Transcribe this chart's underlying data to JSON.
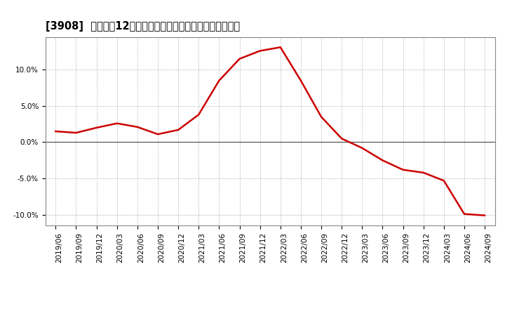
{
  "title": "[3908]  売上高の12か月移動合計の対前年同期増減率の推移",
  "line_color": "#cc0000",
  "bg_color": "#ffffff",
  "plot_bg_color": "#ffffff",
  "grid_color": "#999999",
  "zero_line_color": "#555555",
  "dates": [
    "2019/06",
    "2019/09",
    "2019/12",
    "2020/03",
    "2020/06",
    "2020/09",
    "2020/12",
    "2021/03",
    "2021/06",
    "2021/09",
    "2021/12",
    "2022/03",
    "2022/06",
    "2022/09",
    "2022/12",
    "2023/03",
    "2023/06",
    "2023/09",
    "2023/12",
    "2024/03",
    "2024/06",
    "2024/09"
  ],
  "values": [
    1.5,
    1.3,
    2.0,
    2.6,
    2.1,
    1.1,
    1.7,
    3.8,
    8.5,
    11.5,
    12.6,
    13.1,
    8.5,
    3.5,
    0.5,
    -0.8,
    -2.5,
    -3.8,
    -4.2,
    -5.3,
    -9.9,
    -10.1
  ],
  "ylim": [
    -11.5,
    14.5
  ],
  "yticks": [
    -10.0,
    -5.0,
    0.0,
    5.0,
    10.0
  ],
  "yticklabels": [
    "-10.0%",
    "-5.0%",
    "0.0%",
    "5.0%",
    "10.0%"
  ],
  "xlabel_rotation": 90,
  "tick_fontsize": 7.5,
  "title_fontsize": 10.5,
  "line_width": 1.8
}
